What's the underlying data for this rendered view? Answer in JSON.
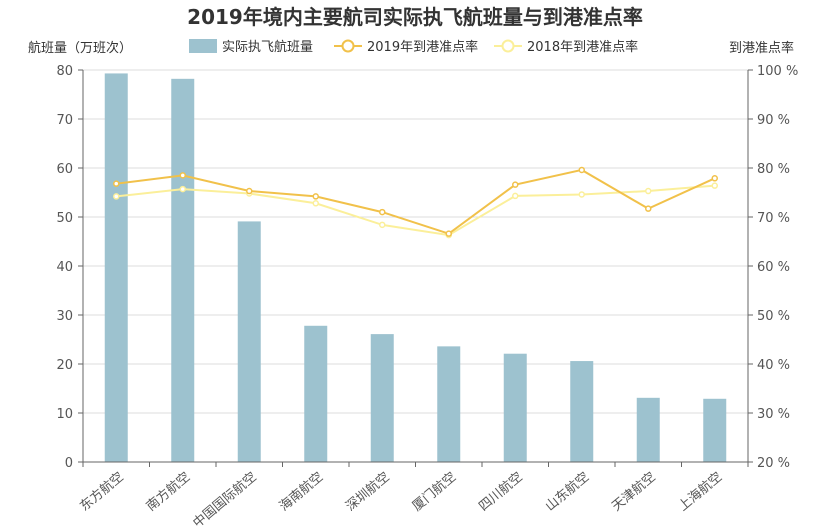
{
  "chart_data": {
    "type": "bar",
    "title": "2019年境内主要航司实际执飞航班量与到港准点率",
    "ylabel_left": "航班量（万班次）",
    "ylabel_right": "到港准点率",
    "categories": [
      "东方航空",
      "南方航空",
      "中国国际航空",
      "海南航空",
      "深圳航空",
      "厦门航空",
      "四川航空",
      "山东航空",
      "天津航空",
      "上海航空"
    ],
    "y_left": {
      "min": 0,
      "max": 80,
      "ticks": [
        0,
        10,
        20,
        30,
        40,
        50,
        60,
        70,
        80
      ]
    },
    "y_right": {
      "min": 20,
      "max": 100,
      "ticks": [
        "20 %",
        "30 %",
        "40 %",
        "50 %",
        "60 %",
        "70 %",
        "80 %",
        "90 %",
        "100 %"
      ]
    },
    "series": [
      {
        "name": "实际执飞航班量",
        "type": "bar",
        "axis": "left",
        "color": "#9dc2cf",
        "values": [
          79.3,
          78.2,
          49.1,
          27.8,
          26.1,
          23.6,
          22.1,
          20.6,
          13.1,
          12.9
        ]
      },
      {
        "name": "2019年到港准点率",
        "type": "line",
        "axis": "right",
        "color": "#f1c14a",
        "values": [
          76.8,
          78.5,
          75.3,
          74.2,
          71.0,
          66.6,
          76.6,
          79.6,
          71.7,
          77.9
        ]
      },
      {
        "name": "2018年到港准点率",
        "type": "line",
        "axis": "right",
        "color": "#fbef9a",
        "values": [
          74.2,
          75.7,
          74.8,
          72.8,
          68.4,
          66.3,
          74.3,
          74.6,
          75.3,
          76.4
        ]
      }
    ],
    "grid": true,
    "legend_position": "top"
  }
}
